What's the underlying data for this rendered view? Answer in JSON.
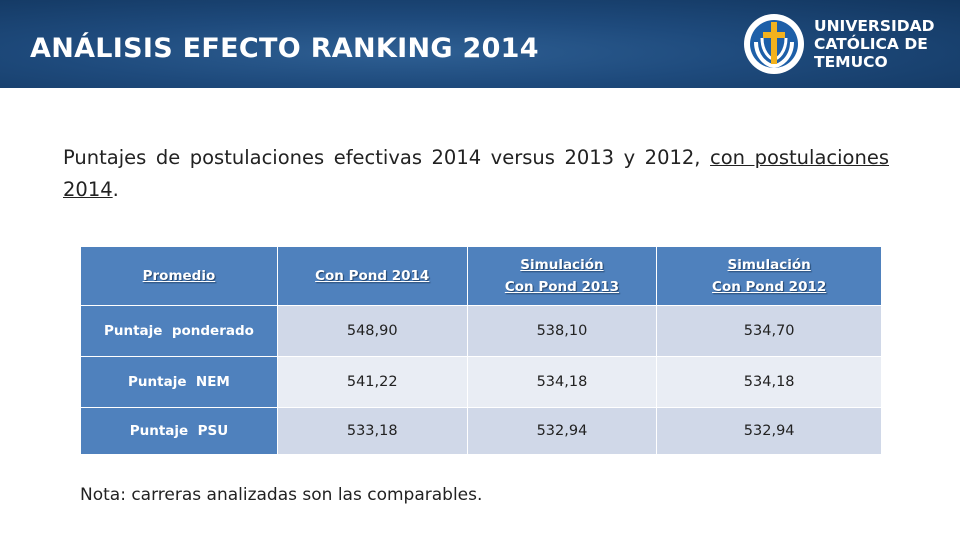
{
  "header": {
    "title": "ANÁLISIS EFECTO RANKING 2014",
    "logo": {
      "icon": "university-crest-icon",
      "lines": [
        "UNIVERSIDAD",
        "CATÓLICA DE",
        "TEMUCO"
      ]
    }
  },
  "intro": {
    "text": "Puntajes de postulaciones efectivas 2014 versus 2013 y 2012, ",
    "underlined": "con postulaciones 2014",
    "end": "."
  },
  "table": {
    "headers": [
      {
        "lines": [
          "Promedio"
        ]
      },
      {
        "lines": [
          "Con Pond 2014"
        ]
      },
      {
        "lines": [
          "Simulación",
          "Con Pond 2013"
        ]
      },
      {
        "lines": [
          "Simulación",
          "Con Pond 2012"
        ]
      }
    ],
    "rows": [
      {
        "label": "Puntaje  ponderado",
        "values": [
          "548,90",
          "538,10",
          "534,70"
        ]
      },
      {
        "label": "Puntaje  NEM",
        "values": [
          "541,22",
          "534,18",
          "534,18"
        ]
      },
      {
        "label": "Puntaje  PSU",
        "values": [
          "533,18",
          "532,94",
          "532,94"
        ]
      }
    ]
  },
  "note": "Nota: carreras analizadas son las comparables.",
  "colors": {
    "header_bg": "#1e4a7c",
    "table_header": "#4f81bd",
    "row_odd": "#d0d8e8",
    "row_even": "#e9edf4"
  }
}
